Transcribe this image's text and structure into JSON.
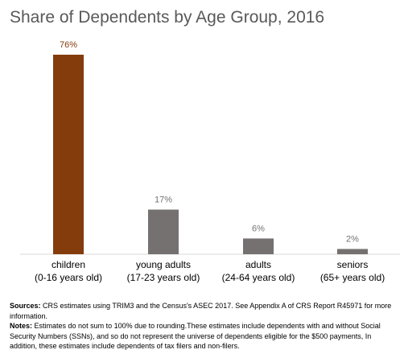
{
  "chart_data": {
    "type": "bar",
    "title": "Share of Dependents by Age Group, 2016",
    "categories": [
      {
        "name": "children",
        "range": "(0-16 years old)"
      },
      {
        "name": "young adults",
        "range": "(17-23 years old)"
      },
      {
        "name": "adults",
        "range": "(24-64 years old)"
      },
      {
        "name": "seniors",
        "range": "(65+ years old)"
      }
    ],
    "values": [
      76,
      17,
      6,
      2
    ],
    "value_labels": [
      "76%",
      "17%",
      "6%",
      "2%"
    ],
    "unit": "%",
    "ylim": [
      0,
      80
    ],
    "grid": false,
    "legend": "none",
    "colors": [
      "#843C0C",
      "#767171",
      "#767171",
      "#767171"
    ],
    "label_colors": [
      "#843C0C",
      "#767171",
      "#767171",
      "#767171"
    ]
  },
  "notes": {
    "sources_label": "Sources:",
    "sources_text": "CRS estimates using TRIM3 and the Census's ASEC 2017. See Appendix A of CRS Report R45971 for more information.",
    "notes_label": "Notes:",
    "notes_text": "Estimates do not sum to 100% due to rounding.These estimates include dependents with and without Social Security Numbers (SSNs), and so do not represent the universe of dependents eligible for the $500 payments, In addition, these estimates include dependents of tax filers and non-filers."
  }
}
